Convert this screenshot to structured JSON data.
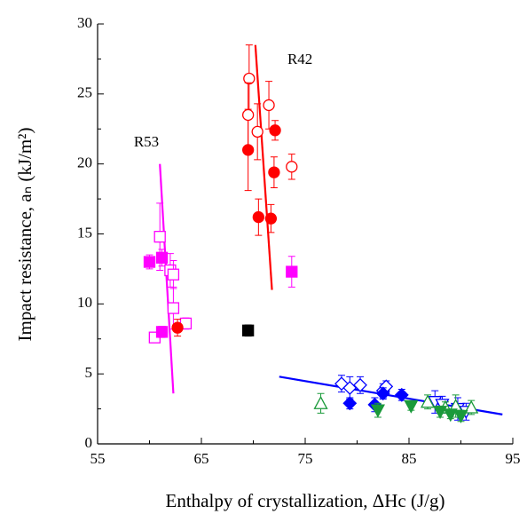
{
  "chart_data": {
    "type": "scatter",
    "xlabel": "Enthalpy of crystallization, ΔHc (J/g)",
    "ylabel": "Impact resistance, aₙ (kJ/m²)",
    "xlim": [
      55,
      95
    ],
    "xticks": [
      55,
      65,
      75,
      85,
      95
    ],
    "xminorticks": [
      60,
      70,
      80,
      90
    ],
    "ylim": [
      0,
      30
    ],
    "yticks": [
      0,
      5,
      10,
      15,
      20,
      25,
      30
    ],
    "yminorticks": [
      2.5,
      7.5,
      12.5,
      17.5,
      22.5,
      27.5
    ],
    "annotations": [
      {
        "text": "R42",
        "x": 74.5,
        "y": 27.4
      },
      {
        "text": "R53",
        "x": 59.7,
        "y": 21.5
      }
    ],
    "series": [
      {
        "color": "#ff00ff",
        "marker": "square",
        "filled": false,
        "x": [
          61.0,
          62.0,
          62.3,
          62.3,
          60.5,
          63.5
        ],
        "values": [
          14.8,
          12.4,
          12.1,
          9.7,
          7.6,
          8.6
        ],
        "errors": [
          2.4,
          1.2,
          1.0,
          1.5,
          0.3,
          0.4
        ]
      },
      {
        "color": "#ff00ff",
        "marker": "square",
        "filled": true,
        "x": [
          60.0,
          61.2,
          61.2,
          73.7
        ],
        "values": [
          13.0,
          13.3,
          8.0,
          12.3
        ],
        "errors": [
          0.5,
          0.6,
          0.4,
          1.1
        ]
      },
      {
        "color": "#ff0000",
        "marker": "circle",
        "filled": true,
        "x": [
          62.7,
          69.5,
          70.5,
          71.7,
          72.0,
          72.1
        ],
        "values": [
          8.3,
          21.0,
          16.2,
          16.1,
          19.4,
          22.4
        ],
        "errors": [
          0.6,
          2.9,
          1.3,
          1.0,
          1.1,
          0.7
        ]
      },
      {
        "color": "#ff0000",
        "marker": "circle",
        "filled": false,
        "x": [
          69.6,
          69.5,
          70.4,
          71.5,
          73.7
        ],
        "values": [
          26.1,
          23.5,
          22.3,
          24.2,
          19.8
        ],
        "errors": [
          2.4,
          2.3,
          2.0,
          1.7,
          0.9
        ]
      },
      {
        "color": "#000000",
        "marker": "square",
        "filled": true,
        "x": [
          69.5
        ],
        "values": [
          8.1
        ],
        "errors": [
          0.4
        ]
      },
      {
        "color": "#0000ff",
        "marker": "diamond",
        "filled": false,
        "x": [
          78.5,
          79.3,
          80.3,
          82.5,
          82.8
        ],
        "values": [
          4.3,
          4.0,
          4.2,
          3.8,
          4.1
        ],
        "errors": [
          0.6,
          0.8,
          0.6,
          0.5,
          0.4
        ]
      },
      {
        "color": "#0000ff",
        "marker": "diamond",
        "filled": true,
        "x": [
          79.3,
          81.7,
          82.5,
          84.3
        ],
        "values": [
          2.9,
          2.8,
          3.6,
          3.5
        ],
        "errors": [
          0.4,
          0.5,
          0.4,
          0.4
        ]
      },
      {
        "color": "#0000ff",
        "marker": "triangle-down",
        "filled": false,
        "x": [
          87.5,
          88.2,
          89.7,
          90.5
        ],
        "values": [
          3.0,
          2.8,
          2.5,
          2.3
        ],
        "errors": [
          0.8,
          0.6,
          0.8,
          0.6
        ]
      },
      {
        "color": "#1a9a3a",
        "marker": "triangle-up",
        "filled": false,
        "x": [
          76.5,
          86.8,
          88.5,
          89.5,
          91.0
        ],
        "values": [
          2.9,
          3.0,
          2.6,
          2.7,
          2.6
        ],
        "errors": [
          0.7,
          0.5,
          0.4,
          0.8,
          0.5
        ]
      },
      {
        "color": "#1a9a3a",
        "marker": "triangle-down",
        "filled": true,
        "x": [
          82.0,
          85.2,
          88.0,
          89.0,
          90.0
        ],
        "values": [
          2.4,
          2.7,
          2.3,
          2.1,
          2.0
        ],
        "errors": [
          0.5,
          0.3,
          0.4,
          0.3,
          0.4
        ]
      }
    ],
    "lines": [
      {
        "color": "#ff00ff",
        "x": [
          61.0,
          62.3
        ],
        "values": [
          20.0,
          3.6
        ]
      },
      {
        "color": "#ff0000",
        "x": [
          70.2,
          71.8
        ],
        "values": [
          28.5,
          11.0
        ]
      },
      {
        "color": "#0000ff",
        "x": [
          72.5,
          94.0
        ],
        "values": [
          4.8,
          2.1
        ]
      }
    ]
  }
}
